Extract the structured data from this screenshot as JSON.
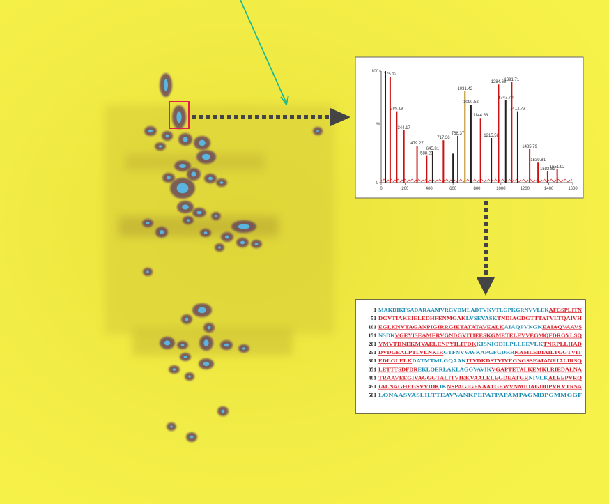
{
  "spectrum": {
    "y_label": "%",
    "xlim": [
      0,
      1600
    ],
    "ylim": [
      0,
      100
    ],
    "xticks": [
      0,
      200,
      400,
      600,
      800,
      1000,
      1200,
      1400,
      1600
    ],
    "yticks": [
      0,
      100
    ],
    "peaks": [
      {
        "mz": 35,
        "intensity": 100,
        "color": "#222222"
      },
      {
        "mz": 75,
        "intensity": 95,
        "color": "#cc1111",
        "label": "175.12"
      },
      {
        "mz": 130,
        "intensity": 64,
        "color": "#cc1111",
        "label": "285.18"
      },
      {
        "mz": 190,
        "intensity": 47,
        "color": "#cc1111",
        "label": "344.17"
      },
      {
        "mz": 300,
        "intensity": 33,
        "color": "#cc1111",
        "label": "479.27"
      },
      {
        "mz": 380,
        "intensity": 24,
        "color": "#cc1111",
        "label": "588.29"
      },
      {
        "mz": 430,
        "intensity": 28,
        "color": "#222222",
        "label": "645.31"
      },
      {
        "mz": 520,
        "intensity": 38,
        "color": "#cc1111",
        "label": "717.36"
      },
      {
        "mz": 600,
        "intensity": 26,
        "color": "#222222"
      },
      {
        "mz": 640,
        "intensity": 42,
        "color": "#cc1111",
        "label": "768.37"
      },
      {
        "mz": 700,
        "intensity": 82,
        "color": "#b8860b",
        "label": "1031.42"
      },
      {
        "mz": 750,
        "intensity": 70,
        "color": "#222222",
        "label": "1090.52"
      },
      {
        "mz": 830,
        "intensity": 58,
        "color": "#cc1111",
        "label": "1144.63"
      },
      {
        "mz": 920,
        "intensity": 40,
        "color": "#222222",
        "label": "1215.58"
      },
      {
        "mz": 980,
        "intensity": 88,
        "color": "#cc1111",
        "label": "1284.68"
      },
      {
        "mz": 1040,
        "intensity": 74,
        "color": "#222222",
        "label": "1343.70"
      },
      {
        "mz": 1090,
        "intensity": 90,
        "color": "#cc1111",
        "label": "1391.71"
      },
      {
        "mz": 1140,
        "intensity": 64,
        "color": "#222222",
        "label": "1412.73"
      },
      {
        "mz": 1240,
        "intensity": 30,
        "color": "#cc1111",
        "label": "1485.79"
      },
      {
        "mz": 1310,
        "intensity": 18,
        "color": "#cc1111",
        "label": "1539.81"
      },
      {
        "mz": 1390,
        "intensity": 10,
        "color": "#cc1111",
        "label": "1582.89"
      },
      {
        "mz": 1470,
        "intensity": 12,
        "color": "#cc1111",
        "label": "1651.92"
      }
    ]
  },
  "sequence": {
    "lines": [
      {
        "num": "1",
        "segments": [
          {
            "text": "MAKDIKFSADARAAMVRGVDMLADTVKVTLGPKGRNVVLEK",
            "covered": false
          },
          {
            "text": "AFGSPLITN",
            "covered": true
          }
        ]
      },
      {
        "num": "51",
        "segments": [
          {
            "text": "DGVTIAKEIELEDHFENMGAK",
            "covered": true
          },
          {
            "text": "LVSEVASK",
            "covered": false
          },
          {
            "text": "TNDIAGDGTTTATVLTQAIVH",
            "covered": true
          }
        ]
      },
      {
        "num": "101",
        "segments": [
          {
            "text": "EGLKNVTAGANPIGIRRGIETATATAVEALK",
            "covered": true
          },
          {
            "text": "AIAQPVNGK",
            "covered": false
          },
          {
            "text": "EAIAQVAAVS",
            "covered": true
          }
        ]
      },
      {
        "num": "151",
        "segments": [
          {
            "text": "NSDK",
            "covered": false
          },
          {
            "text": "VGEYISEAMERVGNDGVITIEESKGMETELEVVEGMQFDRGYLSQ",
            "covered": true
          }
        ]
      },
      {
        "num": "201",
        "segments": [
          {
            "text": "YMVTDNEKMVAELENPYILITDK",
            "covered": true
          },
          {
            "text": "KISNIQDILPLLEEVLK",
            "covered": false
          },
          {
            "text": "TNRPLLIIAD",
            "covered": true
          }
        ]
      },
      {
        "num": "251",
        "segments": [
          {
            "text": "DVDGEALPTLVLNKIR",
            "covered": true
          },
          {
            "text": "GTFNVVAVKAPGFGDRR",
            "covered": false
          },
          {
            "text": "KAMLEDIAILTGGTVIT",
            "covered": true
          }
        ]
      },
      {
        "num": "301",
        "segments": [
          {
            "text": "EDLGLELK",
            "covered": true
          },
          {
            "text": "DATMTMLGQAAK",
            "covered": false
          },
          {
            "text": "ITVDKDSTVIVEGNGSSEAIANRIALIRSQ",
            "covered": true
          }
        ]
      },
      {
        "num": "351",
        "segments": [
          {
            "text": "LETTTSDFDR",
            "covered": true
          },
          {
            "text": "EKLQERLAKLAGGVAVIK",
            "covered": false
          },
          {
            "text": "VGAPTETALKEMKLRIEDALNA",
            "covered": true
          }
        ]
      },
      {
        "num": "401",
        "segments": [
          {
            "text": "TRAAVEEGIVAGGGTALITVIEKVAALELEGDEATGR",
            "covered": true
          },
          {
            "text": "NIVLK",
            "covered": false
          },
          {
            "text": "ALEEPVRQ",
            "covered": true
          }
        ]
      },
      {
        "num": "451",
        "segments": [
          {
            "text": "IALNAGHEGSVVIDK",
            "covered": true
          },
          {
            "text": "IK",
            "covered": false
          },
          {
            "text": "NSPAGIGFNAATGEWVNMIDAGIIDPVKVTRSA",
            "covered": true
          }
        ]
      },
      {
        "num": "501",
        "segments": [
          {
            "text": "LQNAASVASLILTTEAVVANKPEPATPAPAMPAGMDPGMMGGF",
            "covered": false
          }
        ]
      }
    ]
  }
}
